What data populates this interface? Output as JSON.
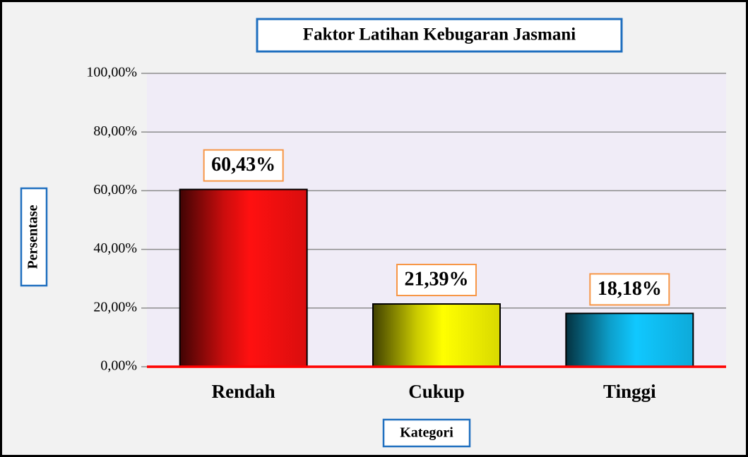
{
  "chart_data": {
    "type": "bar",
    "title": "Faktor Latihan Kebugaran Jasmani",
    "y_label": "Persentase",
    "x_label": "Kategori",
    "categories": [
      "Rendah",
      "Cukup",
      "Tinggi"
    ],
    "values": [
      60.43,
      21.39,
      18.18
    ],
    "value_labels": [
      "60,43%",
      "21,39%",
      "18,18%"
    ],
    "colors": [
      "#ff1010",
      "#ffff00",
      "#10c8ff"
    ],
    "ylim": [
      0,
      100
    ],
    "yticks": [
      {
        "value": 0,
        "label": "0,00%"
      },
      {
        "value": 20,
        "label": "20,00%"
      },
      {
        "value": 40,
        "label": "40,00%"
      },
      {
        "value": 60,
        "label": "60,00%"
      },
      {
        "value": 80,
        "label": "80,00%"
      },
      {
        "value": 100,
        "label": "100,00%"
      }
    ],
    "grid": true
  }
}
